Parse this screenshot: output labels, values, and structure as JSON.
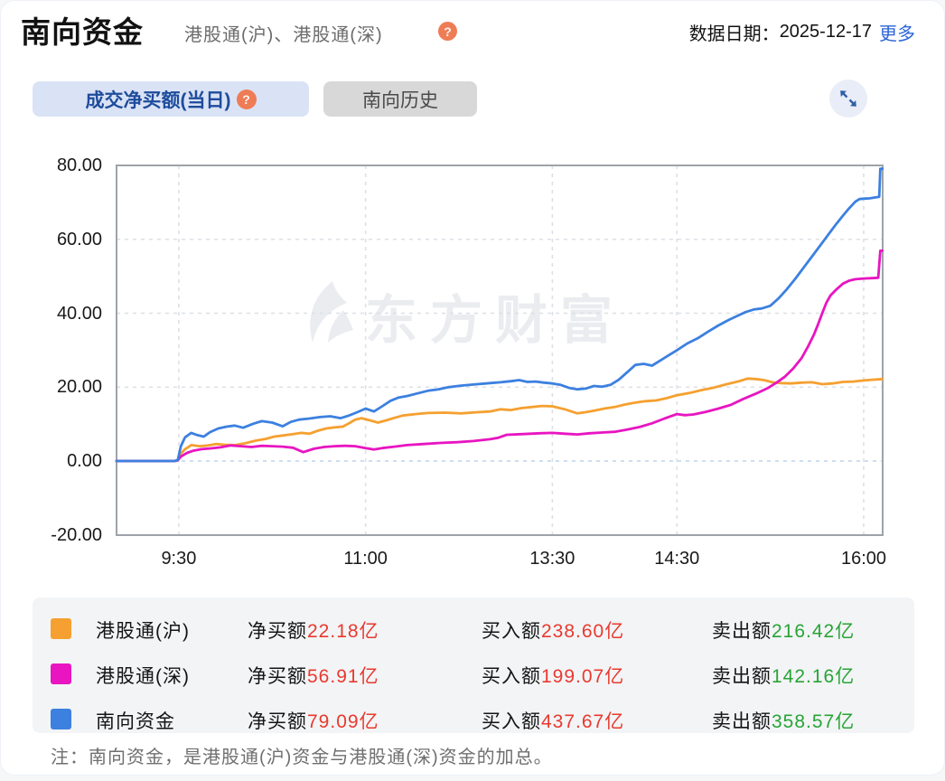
{
  "header": {
    "title": "南向资金",
    "subtitle": "港股通(沪)、港股通(深)",
    "date_label": "数据日期：",
    "date_value": "2025-12-17",
    "more_label": "更多"
  },
  "icons": {
    "help_glyph": "?"
  },
  "tabs": {
    "items": [
      {
        "label": "成交净买额(当日)",
        "active": true,
        "has_help": true
      },
      {
        "label": "南向历史",
        "active": false,
        "has_help": false
      }
    ]
  },
  "chart_data": {
    "type": "line",
    "watermark": "东方财富",
    "unit": "亿",
    "ylim": [
      -20,
      80
    ],
    "grid": true,
    "x_axis": {
      "start": "9:00",
      "end": "16:09",
      "total_minutes": 369,
      "ticks": [
        {
          "label": "9:30",
          "t": 30
        },
        {
          "label": "11:00",
          "t": 120
        },
        {
          "label": "13:30",
          "t": 210
        },
        {
          "label": "14:30",
          "t": 270
        },
        {
          "label": "16:00",
          "t": 360
        }
      ]
    },
    "y_axis": {
      "ticks": [
        {
          "label": "80.00",
          "v": 80
        },
        {
          "label": "60.00",
          "v": 60
        },
        {
          "label": "40.00",
          "v": 40
        },
        {
          "label": "20.00",
          "v": 20
        },
        {
          "label": "0.00",
          "v": 0
        },
        {
          "label": "-20.00",
          "v": -20
        }
      ]
    },
    "series": [
      {
        "name": "港股通(沪)",
        "color": "#f5a030",
        "final_value": 22.18,
        "points": [
          [
            0,
            0
          ],
          [
            10,
            0
          ],
          [
            20,
            0
          ],
          [
            28,
            0
          ],
          [
            29.5,
            0.2
          ],
          [
            31,
            2
          ],
          [
            33,
            3.2
          ],
          [
            36,
            4.3
          ],
          [
            40,
            4
          ],
          [
            44,
            4.2
          ],
          [
            48,
            4.6
          ],
          [
            52,
            4.4
          ],
          [
            57,
            4.3
          ],
          [
            62,
            4.8
          ],
          [
            67,
            5.5
          ],
          [
            72,
            6
          ],
          [
            76,
            6.6
          ],
          [
            80,
            6.9
          ],
          [
            85,
            7.3
          ],
          [
            89,
            7.6
          ],
          [
            93,
            7.4
          ],
          [
            97,
            8.2
          ],
          [
            101,
            8.8
          ],
          [
            105,
            9.1
          ],
          [
            109,
            9.3
          ],
          [
            112,
            10.2
          ],
          [
            115,
            11.2
          ],
          [
            118,
            11.6
          ],
          [
            122,
            11
          ],
          [
            126,
            10.4
          ],
          [
            130,
            11
          ],
          [
            134,
            11.7
          ],
          [
            138,
            12.3
          ],
          [
            144,
            12.7
          ],
          [
            150,
            13
          ],
          [
            158,
            13.1
          ],
          [
            166,
            12.9
          ],
          [
            174,
            13.2
          ],
          [
            180,
            13.4
          ],
          [
            185,
            14
          ],
          [
            190,
            13.8
          ],
          [
            195,
            14.3
          ],
          [
            200,
            14.6
          ],
          [
            205,
            14.9
          ],
          [
            210,
            14.8
          ],
          [
            216,
            14
          ],
          [
            222,
            12.9
          ],
          [
            226,
            13.2
          ],
          [
            230,
            13.6
          ],
          [
            235,
            14.2
          ],
          [
            240,
            14.6
          ],
          [
            245,
            15.3
          ],
          [
            250,
            15.8
          ],
          [
            255,
            16.2
          ],
          [
            260,
            16.4
          ],
          [
            265,
            17
          ],
          [
            270,
            17.8
          ],
          [
            276,
            18.4
          ],
          [
            282,
            19.2
          ],
          [
            288,
            19.9
          ],
          [
            294,
            20.8
          ],
          [
            300,
            21.6
          ],
          [
            304,
            22.3
          ],
          [
            308,
            22.2
          ],
          [
            312,
            21.9
          ],
          [
            316,
            21.3
          ],
          [
            320,
            21.1
          ],
          [
            325,
            21
          ],
          [
            330,
            21.2
          ],
          [
            335,
            21.3
          ],
          [
            340,
            20.8
          ],
          [
            345,
            21
          ],
          [
            350,
            21.4
          ],
          [
            355,
            21.5
          ],
          [
            360,
            21.8
          ],
          [
            364,
            22
          ],
          [
            367,
            22.1
          ],
          [
            369,
            22.18
          ]
        ]
      },
      {
        "name": "港股通(深)",
        "color": "#e815c1",
        "final_value": 56.91,
        "points": [
          [
            0,
            0
          ],
          [
            10,
            0
          ],
          [
            20,
            0
          ],
          [
            28,
            0
          ],
          [
            29.5,
            0.2
          ],
          [
            31,
            1.2
          ],
          [
            34,
            2.2
          ],
          [
            37,
            2.8
          ],
          [
            41,
            3.2
          ],
          [
            45,
            3.4
          ],
          [
            50,
            3.7
          ],
          [
            55,
            4.2
          ],
          [
            60,
            4
          ],
          [
            65,
            3.8
          ],
          [
            70,
            4.1
          ],
          [
            75,
            4
          ],
          [
            80,
            3.9
          ],
          [
            85,
            3.6
          ],
          [
            90,
            2.4
          ],
          [
            95,
            3.3
          ],
          [
            100,
            3.8
          ],
          [
            105,
            4
          ],
          [
            110,
            4.1
          ],
          [
            115,
            4
          ],
          [
            120,
            3.5
          ],
          [
            124,
            3.1
          ],
          [
            128,
            3.5
          ],
          [
            134,
            3.9
          ],
          [
            140,
            4.3
          ],
          [
            148,
            4.6
          ],
          [
            156,
            4.9
          ],
          [
            164,
            5.1
          ],
          [
            172,
            5.4
          ],
          [
            180,
            5.9
          ],
          [
            184,
            6.3
          ],
          [
            188,
            7.1
          ],
          [
            196,
            7.3
          ],
          [
            204,
            7.5
          ],
          [
            210,
            7.6
          ],
          [
            216,
            7.4
          ],
          [
            222,
            7.2
          ],
          [
            228,
            7.5
          ],
          [
            234,
            7.7
          ],
          [
            240,
            7.9
          ],
          [
            246,
            8.5
          ],
          [
            252,
            9.2
          ],
          [
            258,
            10.2
          ],
          [
            264,
            11.5
          ],
          [
            270,
            12.7
          ],
          [
            274,
            12.4
          ],
          [
            278,
            12.6
          ],
          [
            284,
            13.3
          ],
          [
            290,
            14.2
          ],
          [
            296,
            15.2
          ],
          [
            302,
            16.8
          ],
          [
            308,
            18.2
          ],
          [
            314,
            19.8
          ],
          [
            318,
            21.2
          ],
          [
            322,
            22.8
          ],
          [
            326,
            25
          ],
          [
            330,
            27.8
          ],
          [
            333,
            30.8
          ],
          [
            336,
            34.2
          ],
          [
            338,
            37
          ],
          [
            340,
            40
          ],
          [
            342,
            42.8
          ],
          [
            344,
            44.8
          ],
          [
            347,
            46.5
          ],
          [
            350,
            48
          ],
          [
            353,
            48.8
          ],
          [
            356,
            49.2
          ],
          [
            360,
            49.4
          ],
          [
            364,
            49.5
          ],
          [
            367,
            49.6
          ],
          [
            368,
            56.91
          ],
          [
            369,
            56.91
          ]
        ]
      },
      {
        "name": "南向资金",
        "color": "#3c80e0",
        "final_value": 79.09,
        "points": [
          [
            0,
            0
          ],
          [
            10,
            0
          ],
          [
            20,
            0
          ],
          [
            28,
            0
          ],
          [
            29.5,
            0.3
          ],
          [
            31,
            4
          ],
          [
            33,
            6.4
          ],
          [
            36,
            7.6
          ],
          [
            39,
            7
          ],
          [
            42,
            6.6
          ],
          [
            45,
            7.8
          ],
          [
            49,
            8.8
          ],
          [
            53,
            9.3
          ],
          [
            57,
            9.6
          ],
          [
            61,
            9
          ],
          [
            66,
            10.1
          ],
          [
            70,
            10.8
          ],
          [
            75,
            10.4
          ],
          [
            80,
            9.4
          ],
          [
            84,
            10.6
          ],
          [
            88,
            11.2
          ],
          [
            93,
            11.5
          ],
          [
            98,
            11.9
          ],
          [
            103,
            12.1
          ],
          [
            108,
            11.6
          ],
          [
            112,
            12.3
          ],
          [
            116,
            13.2
          ],
          [
            120,
            14.2
          ],
          [
            124,
            13.4
          ],
          [
            128,
            14.8
          ],
          [
            132,
            16.3
          ],
          [
            136,
            17.2
          ],
          [
            140,
            17.6
          ],
          [
            145,
            18.3
          ],
          [
            150,
            19
          ],
          [
            155,
            19.4
          ],
          [
            160,
            20
          ],
          [
            166,
            20.4
          ],
          [
            172,
            20.7
          ],
          [
            180,
            21.1
          ],
          [
            185,
            21.3
          ],
          [
            190,
            21.6
          ],
          [
            194,
            21.9
          ],
          [
            198,
            21.4
          ],
          [
            202,
            21.5
          ],
          [
            206,
            21.2
          ],
          [
            210,
            21
          ],
          [
            214,
            20.6
          ],
          [
            218,
            19.8
          ],
          [
            222,
            19.4
          ],
          [
            226,
            19.6
          ],
          [
            230,
            20.3
          ],
          [
            234,
            20.1
          ],
          [
            238,
            20.6
          ],
          [
            242,
            22
          ],
          [
            246,
            24
          ],
          [
            250,
            26
          ],
          [
            254,
            26.3
          ],
          [
            258,
            25.8
          ],
          [
            262,
            27.2
          ],
          [
            266,
            28.6
          ],
          [
            270,
            30
          ],
          [
            275,
            31.8
          ],
          [
            280,
            33.2
          ],
          [
            285,
            35
          ],
          [
            290,
            36.7
          ],
          [
            295,
            38.2
          ],
          [
            300,
            39.5
          ],
          [
            303,
            40.3
          ],
          [
            307,
            41
          ],
          [
            311,
            41.3
          ],
          [
            315,
            42
          ],
          [
            319,
            44
          ],
          [
            323,
            46.5
          ],
          [
            327,
            49.3
          ],
          [
            331,
            52.3
          ],
          [
            335,
            55.3
          ],
          [
            339,
            58.3
          ],
          [
            343,
            61.3
          ],
          [
            347,
            64.3
          ],
          [
            350,
            66.4
          ],
          [
            353,
            68.4
          ],
          [
            356,
            70.2
          ],
          [
            358,
            70.9
          ],
          [
            360,
            71
          ],
          [
            363,
            71.1
          ],
          [
            366,
            71.4
          ],
          [
            367.5,
            71.5
          ],
          [
            368,
            79.09
          ],
          [
            369,
            79.09
          ]
        ]
      }
    ],
    "style": {
      "frame_color": "#9ea3a9",
      "grid_color": "#dce0e6",
      "zero_line_color": "#bfd3ea"
    }
  },
  "legend": {
    "rows": [
      {
        "name": "港股通(沪)",
        "color": "#f5a030",
        "net_label": "净买额",
        "net_value": "22.18亿",
        "buy_label": "买入额",
        "buy_value": "238.60亿",
        "sell_label": "卖出额",
        "sell_value": "216.42亿"
      },
      {
        "name": "港股通(深)",
        "color": "#e815c1",
        "net_label": "净买额",
        "net_value": "56.91亿",
        "buy_label": "买入额",
        "buy_value": "199.07亿",
        "sell_label": "卖出额",
        "sell_value": "142.16亿"
      },
      {
        "name": "南向资金",
        "color": "#3c80e0",
        "net_label": "净买额",
        "net_value": "79.09亿",
        "buy_label": "买入额",
        "buy_value": "437.67亿",
        "sell_label": "卖出额",
        "sell_value": "358.57亿"
      }
    ],
    "value_up_color": "#e9392e",
    "value_down_color": "#27a436"
  },
  "note": {
    "text": "注：南向资金，是港股通(沪)资金与港股通(深)资金的加总。"
  }
}
